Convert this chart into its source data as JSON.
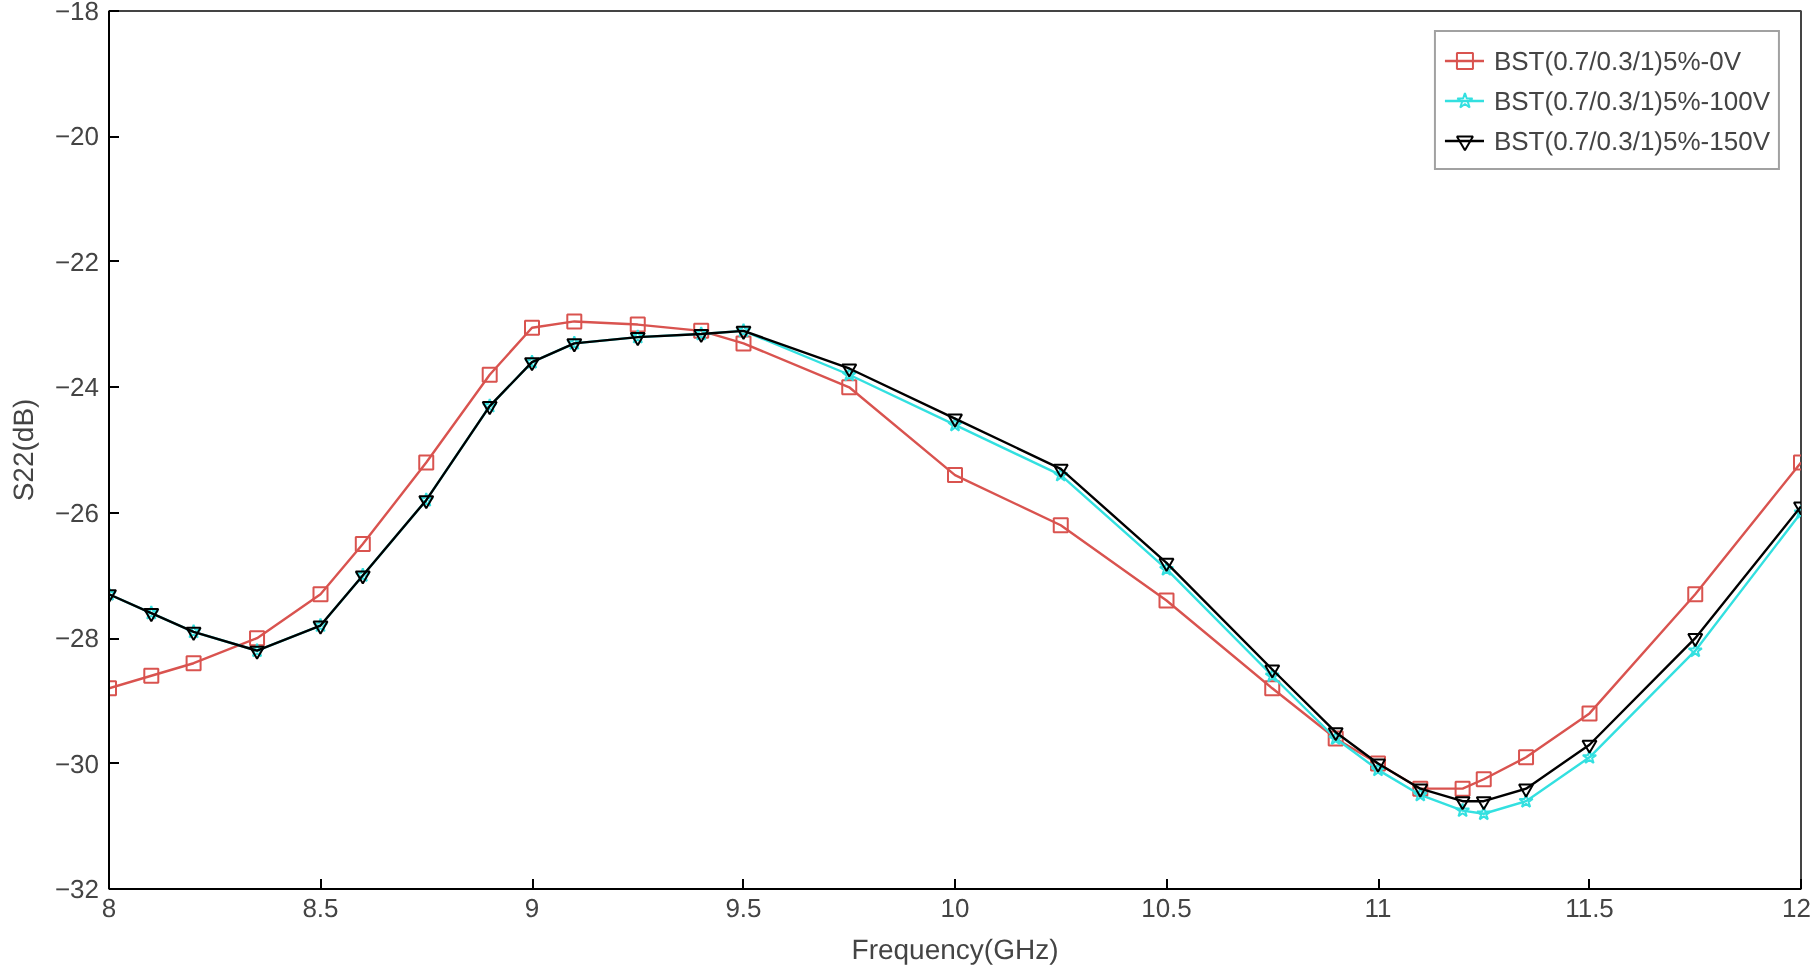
{
  "chart_data": {
    "type": "line",
    "xlabel": "Frequency(GHz)",
    "ylabel": "S22(dB)",
    "xlim": [
      8,
      12
    ],
    "ylim": [
      -32,
      -18
    ],
    "xticks": [
      8,
      8.5,
      9,
      9.5,
      10,
      10.5,
      11,
      11.5,
      12
    ],
    "yticks": [
      -32,
      -30,
      -28,
      -26,
      -24,
      -22,
      -20,
      -18
    ],
    "grid": false,
    "legend": "top right",
    "x": [
      8,
      8.1,
      8.2,
      8.35,
      8.5,
      8.6,
      8.75,
      8.9,
      9,
      9.1,
      9.25,
      9.4,
      9.5,
      9.75,
      10,
      10.25,
      10.5,
      10.75,
      10.9,
      11,
      11.1,
      11.2,
      11.25,
      11.35,
      11.5,
      11.75,
      12
    ],
    "series": [
      {
        "name": "BST(0.7/0.3/1)5%-0V",
        "color": "#d9534f",
        "marker": "square",
        "values": [
          -28.8,
          -28.6,
          -28.4,
          -28.0,
          -27.3,
          -26.5,
          -25.2,
          -23.8,
          -23.05,
          -22.95,
          -23.0,
          -23.1,
          -23.3,
          -24.0,
          -25.4,
          -26.2,
          -27.4,
          -28.8,
          -29.6,
          -30.0,
          -30.4,
          -30.4,
          -30.25,
          -29.9,
          -29.2,
          -27.3,
          -25.2
        ]
      },
      {
        "name": "BST(0.7/0.3/1)5%-100V",
        "color": "#33e0e0",
        "marker": "star",
        "values": [
          -27.3,
          -27.6,
          -27.9,
          -28.2,
          -27.8,
          -27.0,
          -25.8,
          -24.3,
          -23.6,
          -23.3,
          -23.2,
          -23.15,
          -23.1,
          -23.8,
          -24.6,
          -25.4,
          -26.9,
          -28.6,
          -29.6,
          -30.1,
          -30.5,
          -30.75,
          -30.8,
          -30.6,
          -29.9,
          -28.2,
          -26.0
        ]
      },
      {
        "name": "BST(0.7/0.3/1)5%-150V",
        "color": "#000000",
        "marker": "triangle",
        "values": [
          -27.3,
          -27.6,
          -27.9,
          -28.2,
          -27.8,
          -27.0,
          -25.8,
          -24.3,
          -23.6,
          -23.3,
          -23.2,
          -23.15,
          -23.1,
          -23.7,
          -24.5,
          -25.3,
          -26.8,
          -28.5,
          -29.5,
          -30.0,
          -30.4,
          -30.6,
          -30.6,
          -30.4,
          -29.7,
          -28.0,
          -25.9
        ]
      }
    ]
  }
}
